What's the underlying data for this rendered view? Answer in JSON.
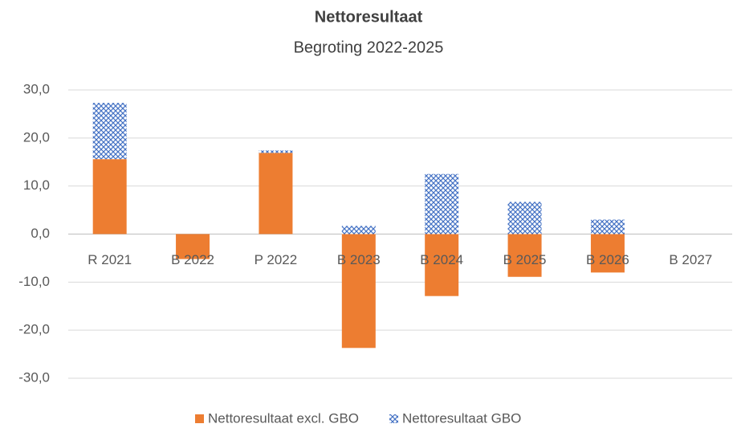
{
  "chart_data": {
    "type": "bar",
    "stacked": true,
    "title": "Nettoresultaat",
    "subtitle": "Begroting 2022-2025",
    "categories": [
      "R 2021",
      "B 2022",
      "P 2022",
      "B 2023",
      "B 2024",
      "B 2025",
      "B 2026",
      "B 2027"
    ],
    "series": [
      {
        "name": "Nettoresultaat excl. GBO",
        "color": "#ed7d31",
        "values": [
          15.6,
          -5.2,
          16.9,
          -23.7,
          -12.9,
          -8.9,
          -8.0,
          0
        ]
      },
      {
        "name": "Nettoresultaat GBO",
        "color": "#4472c4",
        "pattern": "crosshatch",
        "values": [
          11.7,
          0,
          0.5,
          1.7,
          12.5,
          6.7,
          3.0,
          0
        ]
      }
    ],
    "ylim": [
      -30,
      30
    ],
    "yticks": [
      {
        "value": -30,
        "label": "-30,0"
      },
      {
        "value": -20,
        "label": "-20,0"
      },
      {
        "value": -10,
        "label": "-10,0"
      },
      {
        "value": 0,
        "label": "0,0"
      },
      {
        "value": 10,
        "label": "10,0"
      },
      {
        "value": 20,
        "label": "20,0"
      },
      {
        "value": 30,
        "label": "30,0"
      }
    ],
    "grid": true,
    "legend": "bottom"
  }
}
